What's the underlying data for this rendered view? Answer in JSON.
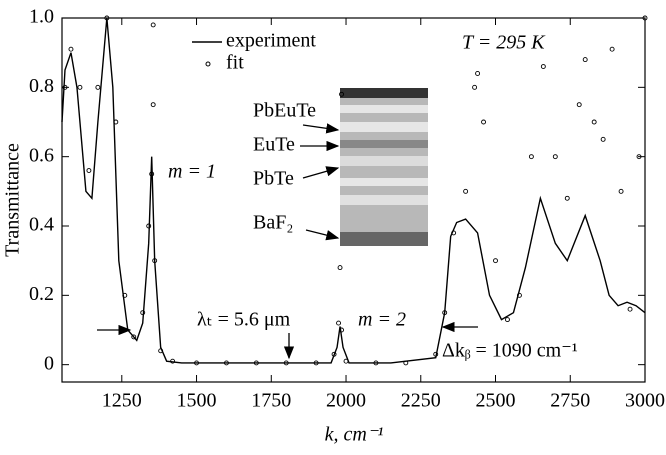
{
  "chart_data": {
    "type": "line",
    "x_label": "k, cm⁻¹",
    "y_label": "Transmittance",
    "xlim": [
      1050,
      3000
    ],
    "ylim": [
      -0.05,
      1.0
    ],
    "xticks": [
      1250,
      1500,
      1750,
      2000,
      2250,
      2500,
      2750,
      3000
    ],
    "yticks": [
      0,
      0.2,
      0.4,
      0.6,
      0.8,
      {
        "value": 1.0,
        "label": "1.0"
      }
    ],
    "legend": "top-center",
    "series": [
      {
        "name": "experiment",
        "style": "line",
        "color": "#000000",
        "x": [
          1050,
          1060,
          1080,
          1100,
          1130,
          1150,
          1170,
          1190,
          1200,
          1220,
          1240,
          1270,
          1300,
          1320,
          1340,
          1350,
          1360,
          1380,
          1400,
          1450,
          1600,
          1800,
          1950,
          1970,
          1980,
          1990,
          2010,
          2150,
          2300,
          2330,
          2350,
          2370,
          2400,
          2440,
          2480,
          2520,
          2560,
          2600,
          2650,
          2700,
          2740,
          2800,
          2850,
          2880,
          2910,
          2940,
          2970,
          3000
        ],
        "values": [
          0.7,
          0.85,
          0.9,
          0.8,
          0.5,
          0.48,
          0.7,
          0.9,
          1.0,
          0.8,
          0.3,
          0.1,
          0.07,
          0.12,
          0.35,
          0.6,
          0.3,
          0.05,
          0.01,
          0.005,
          0.005,
          0.005,
          0.005,
          0.05,
          0.11,
          0.05,
          0.005,
          0.005,
          0.02,
          0.15,
          0.37,
          0.41,
          0.42,
          0.38,
          0.2,
          0.13,
          0.15,
          0.28,
          0.48,
          0.35,
          0.3,
          0.43,
          0.3,
          0.2,
          0.17,
          0.18,
          0.17,
          0.15
        ]
      },
      {
        "name": "fit",
        "style": "circles",
        "color": "#000000",
        "x": [
          1060,
          1080,
          1110,
          1140,
          1170,
          1200,
          1230,
          1260,
          1290,
          1320,
          1340,
          1350,
          1355,
          1355,
          1360,
          1380,
          1420,
          1500,
          1600,
          1700,
          1800,
          1900,
          1960,
          1975,
          1980,
          1985,
          1985,
          2000,
          2100,
          2200,
          2300,
          2330,
          2360,
          2400,
          2430,
          2440,
          2460,
          2500,
          2540,
          2580,
          2620,
          2660,
          2700,
          2740,
          2780,
          2800,
          2830,
          2860,
          2890,
          2920,
          2950,
          2980,
          3000
        ],
        "values": [
          0.8,
          0.91,
          0.8,
          0.56,
          0.8,
          1.0,
          0.7,
          0.2,
          0.08,
          0.15,
          0.4,
          0.55,
          0.75,
          0.98,
          0.3,
          0.04,
          0.01,
          0.005,
          0.005,
          0.005,
          0.005,
          0.005,
          0.03,
          0.12,
          0.28,
          0.78,
          0.1,
          0.01,
          0.005,
          0.005,
          0.03,
          0.15,
          0.38,
          0.5,
          0.8,
          0.84,
          0.7,
          0.3,
          0.13,
          0.2,
          0.6,
          0.86,
          0.6,
          0.48,
          0.75,
          0.88,
          0.7,
          0.65,
          0.91,
          0.5,
          0.16,
          0.6,
          1.0
        ]
      }
    ],
    "annotations": {
      "temperature": "T = 295 K",
      "m1": "m = 1",
      "m2": "m = 2",
      "lambda": "λₜ = 5.6 μm",
      "delta": "Δkᵦ = 1090 cm⁻¹"
    },
    "inset_labels": [
      "PbEuTe",
      "EuTe",
      "PbTe",
      "BaF₂"
    ]
  }
}
